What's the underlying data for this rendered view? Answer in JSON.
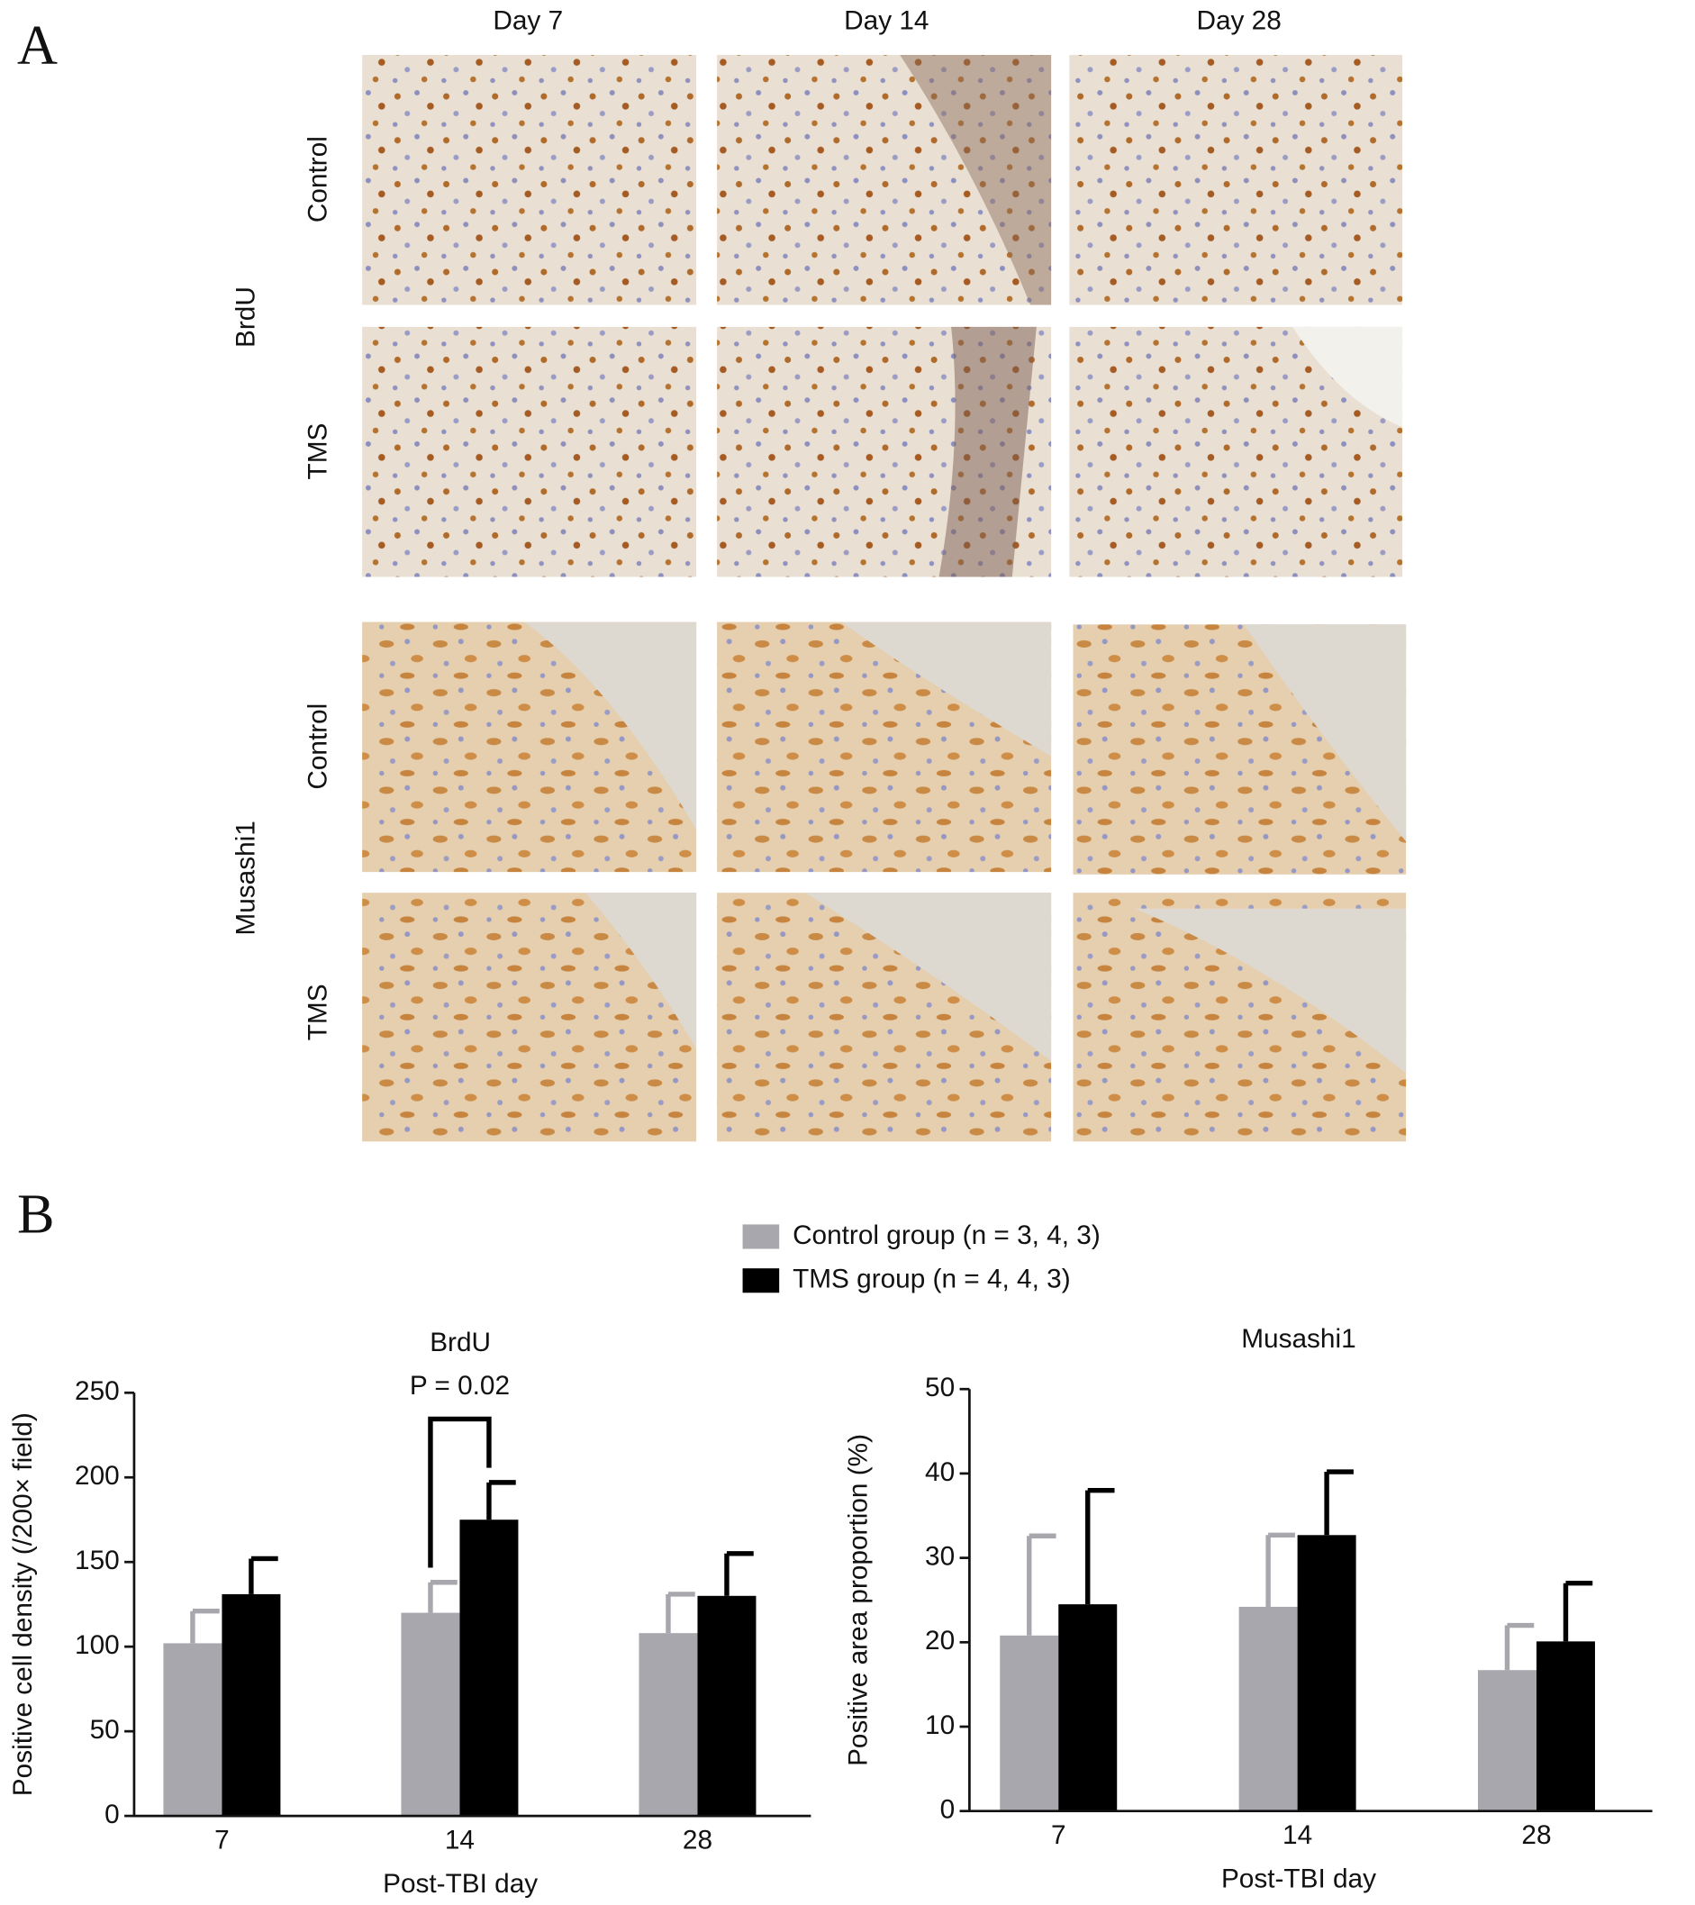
{
  "figure": {
    "panel_a": "A",
    "panel_b": "B",
    "columns": [
      "Day 7",
      "Day 14",
      "Day 28"
    ],
    "rows": [
      "Control",
      "TMS",
      "Control",
      "TMS"
    ],
    "groups": [
      "BrdU",
      "Musashi1"
    ]
  },
  "chart_data": [
    {
      "type": "bar",
      "title": "BrdU",
      "annotation": "P = 0.02",
      "x_label": "Post-TBI day",
      "y_label": "Positive cell density (/200× field)",
      "categories": [
        "7",
        "14",
        "28"
      ],
      "series": [
        {
          "name": "Control group (n = 3, 4, 3)",
          "color": "#a7a7ad",
          "values": [
            102,
            120,
            108
          ],
          "errors": [
            19,
            18,
            23
          ]
        },
        {
          "name": "TMS group (n = 4, 4, 3)",
          "color": "#000000",
          "values": [
            131,
            175,
            130
          ],
          "errors": [
            21,
            22,
            25
          ]
        }
      ],
      "ylim": [
        0,
        250
      ],
      "yticks": [
        0,
        50,
        100,
        150,
        200,
        250
      ]
    },
    {
      "type": "bar",
      "title": "Musashi1",
      "x_label": "Post-TBI day",
      "y_label": "Positive area proportion (%)",
      "categories": [
        "7",
        "14",
        "28"
      ],
      "series": [
        {
          "color": "#a7a7ad",
          "values": [
            20.8,
            24.2,
            16.7
          ],
          "errors": [
            11.8,
            8.5,
            5.3
          ]
        },
        {
          "color": "#000000",
          "values": [
            24.5,
            32.7,
            20.1
          ],
          "errors": [
            13.5,
            7.5,
            6.9
          ]
        }
      ],
      "ylim": [
        0,
        50
      ],
      "yticks": [
        0,
        10,
        20,
        30,
        40,
        50
      ]
    }
  ]
}
